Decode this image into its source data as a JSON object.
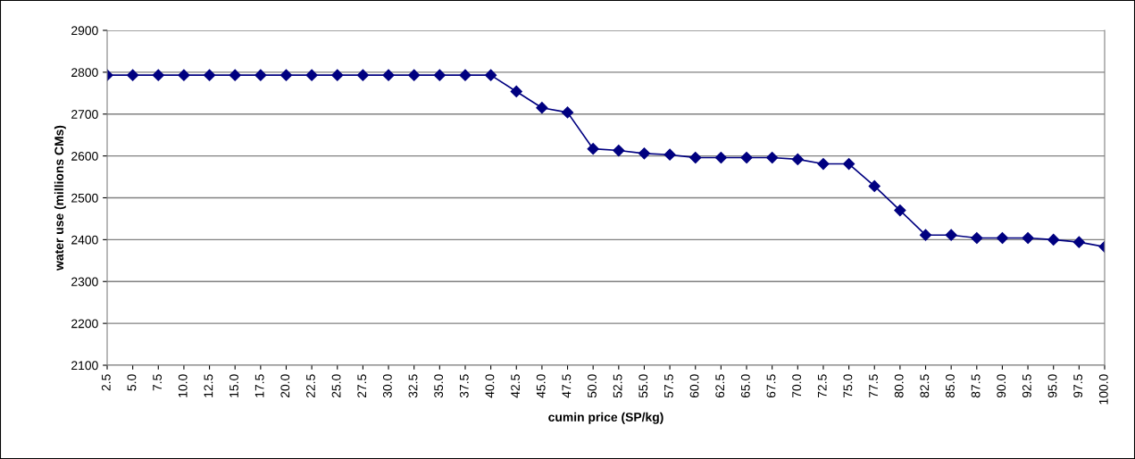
{
  "chart_data": {
    "type": "line",
    "xlabel": "cumin price (SP/kg)",
    "ylabel": "water use (millions CMs)",
    "categories": [
      "2.5",
      "5.0",
      "7.5",
      "10.0",
      "12.5",
      "15.0",
      "17.5",
      "20.0",
      "22.5",
      "25.0",
      "27.5",
      "30.0",
      "32.5",
      "35.0",
      "37.5",
      "40.0",
      "42.5",
      "45.0",
      "47.5",
      "50.0",
      "52.5",
      "55.0",
      "57.5",
      "60.0",
      "62.5",
      "65.0",
      "67.5",
      "70.0",
      "72.5",
      "75.0",
      "77.5",
      "80.0",
      "82.5",
      "85.0",
      "87.5",
      "90.0",
      "92.5",
      "95.0",
      "97.5",
      "100.0"
    ],
    "series": [
      {
        "color": "#000080",
        "values": [
          2793,
          2793,
          2793,
          2793,
          2793,
          2793,
          2793,
          2793,
          2793,
          2793,
          2793,
          2793,
          2793,
          2793,
          2793,
          2793,
          2754,
          2715,
          2704,
          2617,
          2613,
          2606,
          2603,
          2596,
          2596,
          2596,
          2596,
          2592,
          2581,
          2581,
          2528,
          2470,
          2411,
          2411,
          2404,
          2404,
          2404,
          2400,
          2394,
          2383
        ]
      }
    ],
    "ylim": [
      2100,
      2900
    ],
    "yticks": [
      2100,
      2200,
      2300,
      2400,
      2500,
      2600,
      2700,
      2800,
      2900
    ],
    "grid": "y",
    "marker": "diamond",
    "line_style": "solid",
    "legend": false
  }
}
